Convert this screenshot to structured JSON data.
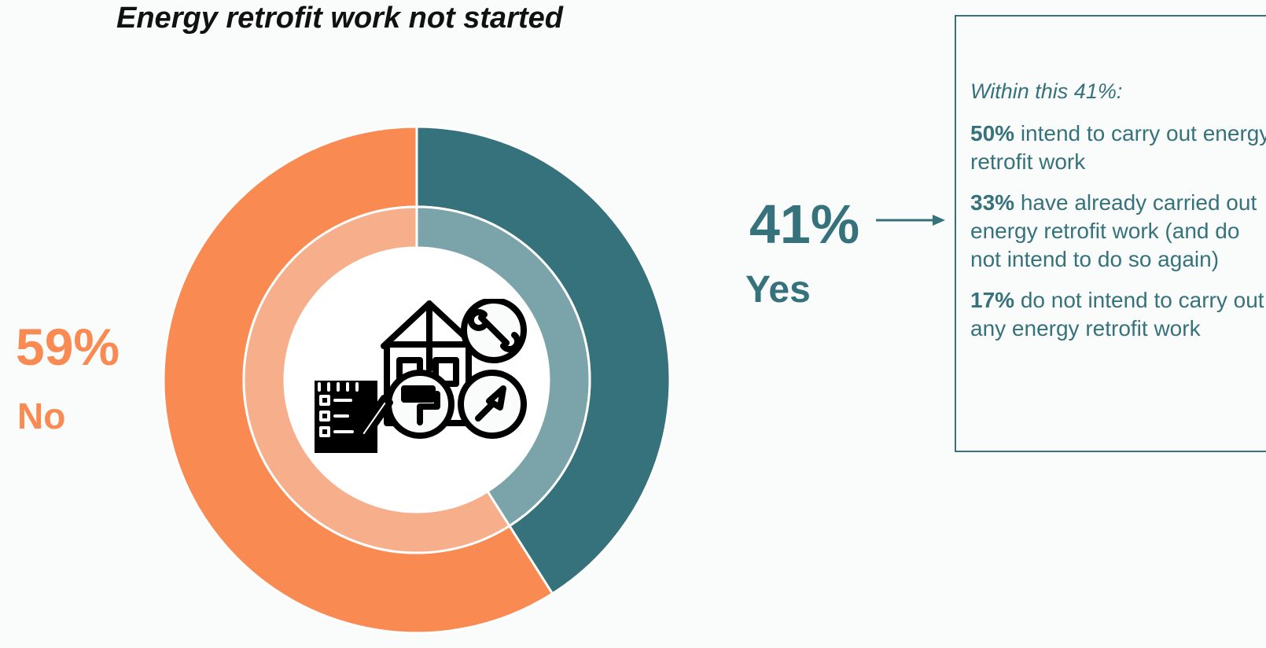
{
  "chart_data": {
    "type": "pie",
    "title": "Energy retrofit work not started",
    "slices": [
      {
        "label": "Yes",
        "value": 41,
        "display": "41%",
        "color": "#36727b",
        "inner_color": "#7aa3aa"
      },
      {
        "label": "No",
        "value": 59,
        "display": "59%",
        "color": "#f98b52",
        "inner_color": "#f7af8b"
      }
    ],
    "style": "donut",
    "legend": "none"
  },
  "labels": {
    "no_pct": "59%",
    "no_label": "No",
    "yes_pct": "41%",
    "yes_label": "Yes"
  },
  "callout": {
    "intro": "Within this 41%:",
    "items": [
      {
        "pct": "50%",
        "text": " intend to carry out energy retrofit work"
      },
      {
        "pct": "33%",
        "text": " have already carried out energy retrofit work (and do not intend to do so again)"
      },
      {
        "pct": "17%",
        "text": " do not intend to carry out any energy retrofit work"
      }
    ]
  },
  "icons": {
    "center": "house-renovation-tools-icon",
    "arrow": "right-arrow-icon"
  }
}
